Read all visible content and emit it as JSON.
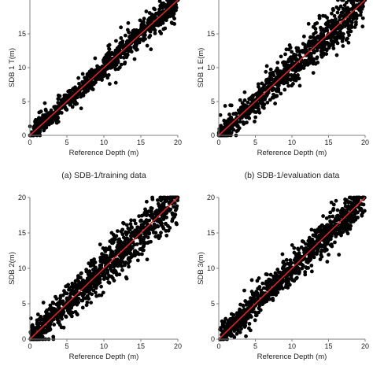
{
  "figure": {
    "colors": {
      "point": "#000000",
      "line": "#d62728",
      "axis": "#7f7f7f",
      "background": "#ffffff"
    },
    "chart_data": [
      {
        "type": "scatter",
        "id": "a",
        "caption": "(a) SDB-1/training data",
        "xlabel": "Reference Depth (m)",
        "ylabel": "SDB 1 T(m)",
        "xlim": [
          0,
          20
        ],
        "ylim": [
          0,
          20
        ],
        "xticks": [
          0,
          5,
          10,
          15,
          20
        ],
        "yticks": [
          0,
          5,
          10,
          15
        ],
        "grid": false,
        "legend": "none",
        "fit_line": [
          [
            0,
            0
          ],
          [
            20,
            20
          ]
        ],
        "point_count": 900,
        "spread": 1.1,
        "seed": 11
      },
      {
        "type": "scatter",
        "id": "b",
        "caption": "(b) SDB-1/evaluation data",
        "xlabel": "Reference Depth (m)",
        "ylabel": "SDB 1 E(m)",
        "xlim": [
          0,
          20
        ],
        "ylim": [
          0,
          20
        ],
        "xticks": [
          0,
          5,
          10,
          15,
          20
        ],
        "yticks": [
          0,
          5,
          10,
          15
        ],
        "grid": false,
        "legend": "none",
        "fit_line": [
          [
            0,
            0
          ],
          [
            20,
            20
          ]
        ],
        "point_count": 900,
        "spread": 1.6,
        "seed": 23
      },
      {
        "type": "scatter",
        "id": "c",
        "caption": "",
        "xlabel": "Reference Depth (m)",
        "ylabel": "SDB 2(m)",
        "xlim": [
          0,
          20
        ],
        "ylim": [
          0,
          20
        ],
        "xticks": [
          0,
          5,
          10,
          15,
          20
        ],
        "yticks": [
          0,
          5,
          10,
          15,
          20
        ],
        "grid": false,
        "legend": "none",
        "fit_line": [
          [
            0,
            0
          ],
          [
            20,
            20
          ]
        ],
        "point_count": 1000,
        "spread": 1.7,
        "seed": 37
      },
      {
        "type": "scatter",
        "id": "d",
        "caption": "",
        "xlabel": "Reference Depth (m)",
        "ylabel": "SDB 3(m)",
        "xlim": [
          0,
          20
        ],
        "ylim": [
          0,
          20
        ],
        "xticks": [
          0,
          5,
          10,
          15,
          20
        ],
        "yticks": [
          0,
          5,
          10,
          15,
          20
        ],
        "grid": false,
        "legend": "none",
        "fit_line": [
          [
            0,
            0
          ],
          [
            20,
            20
          ]
        ],
        "point_count": 1000,
        "spread": 1.3,
        "seed": 53
      }
    ]
  }
}
